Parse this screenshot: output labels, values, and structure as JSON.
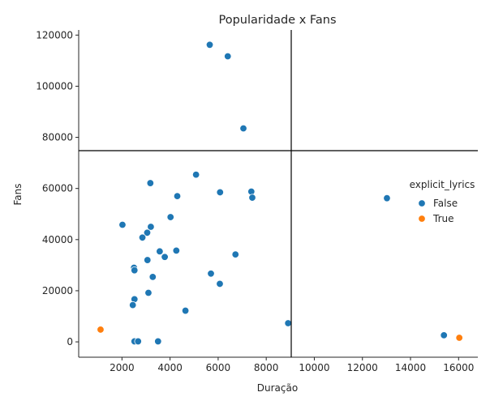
{
  "chart_data": {
    "type": "scatter",
    "title": "Popularidade x Fans",
    "xlabel": "Duração",
    "ylabel": "Fans",
    "xlim": [
      200,
      16800
    ],
    "ylim": [
      -6000,
      122000
    ],
    "xticks": [
      2000,
      4000,
      6000,
      8000,
      10000,
      12000,
      14000,
      16000
    ],
    "yticks": [
      0,
      20000,
      40000,
      60000,
      80000,
      100000,
      120000
    ],
    "reference_lines": {
      "vertical_x": 9040,
      "horizontal_y": 74800
    },
    "grid": false,
    "legend": {
      "title": "explicit_lyrics",
      "placement": "center-right",
      "entries": [
        {
          "label": "False",
          "color": "#1f77b4"
        },
        {
          "label": "True",
          "color": "#ff7f0e"
        }
      ]
    },
    "series": [
      {
        "name": "False",
        "color": "#1f77b4",
        "points": [
          [
            5650,
            116200
          ],
          [
            6400,
            111700
          ],
          [
            7050,
            83500
          ],
          [
            5080,
            65400
          ],
          [
            3180,
            62100
          ],
          [
            6080,
            58500
          ],
          [
            7380,
            58800
          ],
          [
            7420,
            56400
          ],
          [
            4300,
            57000
          ],
          [
            13020,
            56200
          ],
          [
            4020,
            48800
          ],
          [
            2020,
            45800
          ],
          [
            3200,
            45000
          ],
          [
            3050,
            42700
          ],
          [
            2850,
            40800
          ],
          [
            4260,
            35700
          ],
          [
            3570,
            35400
          ],
          [
            3780,
            33200
          ],
          [
            6720,
            34200
          ],
          [
            3060,
            32000
          ],
          [
            2500,
            29000
          ],
          [
            2520,
            28000
          ],
          [
            5700,
            26700
          ],
          [
            3280,
            25400
          ],
          [
            6070,
            22700
          ],
          [
            3100,
            19200
          ],
          [
            2520,
            16700
          ],
          [
            2450,
            14400
          ],
          [
            4640,
            12200
          ],
          [
            8910,
            7300
          ],
          [
            15390,
            2600
          ],
          [
            2520,
            200
          ],
          [
            2670,
            200
          ],
          [
            3500,
            200
          ]
        ]
      },
      {
        "name": "True",
        "color": "#ff7f0e",
        "points": [
          [
            1110,
            4800
          ],
          [
            16030,
            1600
          ]
        ]
      }
    ]
  }
}
